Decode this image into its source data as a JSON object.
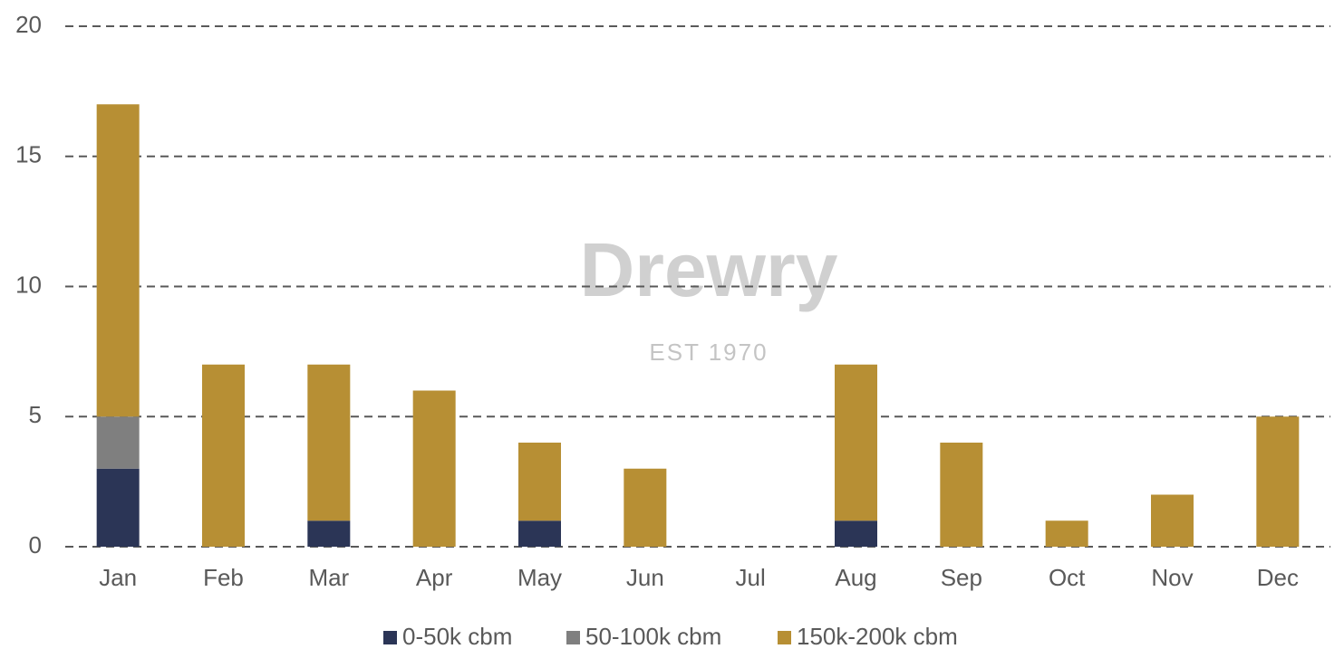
{
  "chart_data": {
    "type": "stacked_bar",
    "watermark": "Drewry",
    "watermark_subtitle": "EST 1970",
    "categories": [
      "Jan",
      "Feb",
      "Mar",
      "Apr",
      "May",
      "Jun",
      "Jul",
      "Aug",
      "Sep",
      "Oct",
      "Nov",
      "Dec"
    ],
    "series": [
      {
        "name": "0-50k cbm",
        "color": "#2b3556",
        "values": [
          3,
          0,
          1,
          0,
          1,
          0,
          0,
          1,
          0,
          0,
          0,
          0
        ]
      },
      {
        "name": "50-100k cbm",
        "color": "#7f7f7f",
        "values": [
          2,
          0,
          0,
          0,
          0,
          0,
          0,
          0,
          0,
          0,
          0,
          0
        ]
      },
      {
        "name": "150k-200k cbm",
        "color": "#b78f34",
        "values": [
          12,
          7,
          6,
          6,
          3,
          3,
          0,
          6,
          4,
          1,
          2,
          5
        ]
      }
    ],
    "ylim": [
      0,
      20
    ],
    "yticks": [
      0,
      5,
      10,
      15,
      20
    ],
    "grid": true,
    "legend": "bottom"
  }
}
